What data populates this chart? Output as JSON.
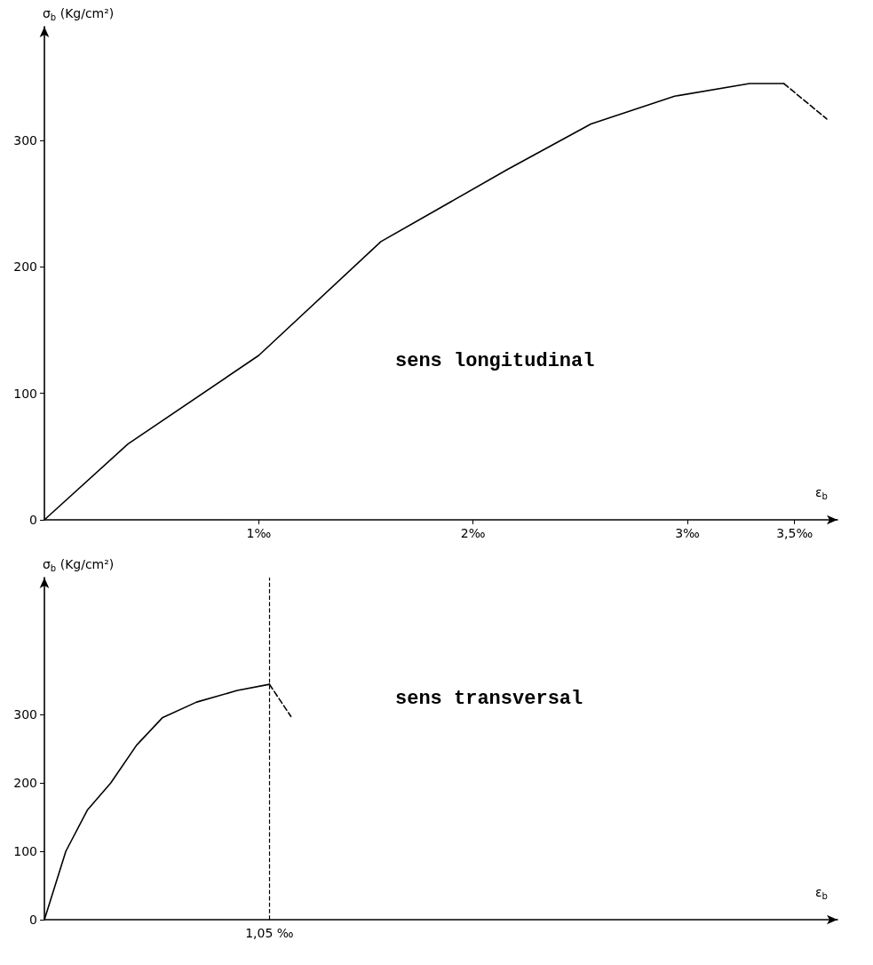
{
  "chart_data": [
    {
      "type": "line",
      "xlabel": "ε$_{b}$",
      "ylabel": "σ$_{b}$ (Kg/cm²)",
      "xlim": [
        0,
        3.7
      ],
      "ylim": [
        0,
        390
      ],
      "xticks": [
        {
          "value": 1,
          "label": "1‰"
        },
        {
          "value": 2,
          "label": "2‰"
        },
        {
          "value": 3,
          "label": "3‰"
        },
        {
          "value": 3.5,
          "label": "3,5‰"
        }
      ],
      "yticks": [
        0,
        100,
        200,
        300
      ],
      "grid": false,
      "marker": "none",
      "series": [
        {
          "color": "#000000",
          "line_style": "solid",
          "x": [
            0,
            0.39,
            1.0,
            1.57,
            2.16,
            2.55,
            2.94,
            3.29,
            3.45
          ],
          "values": [
            0,
            60,
            130,
            220,
            277,
            313,
            335,
            345,
            345
          ]
        },
        {
          "color": "#000000",
          "line_style": "dashed",
          "x": [
            3.45,
            3.65
          ],
          "values": [
            345,
            317
          ]
        }
      ],
      "annotations": [
        "sens longitudinal"
      ]
    },
    {
      "type": "line",
      "xlabel": "ε$_{b}$",
      "ylabel": "σ$_{b}$ (Kg/cm²)",
      "xlim": [
        0,
        3.7
      ],
      "ylim": [
        0,
        500
      ],
      "yticks": [
        0,
        100,
        200,
        300
      ],
      "grid": false,
      "marker": "none",
      "tick_labels": "y",
      "series": [
        {
          "color": "#000000",
          "line_style": "solid",
          "x": [
            0,
            0.1,
            0.2,
            0.31,
            0.43,
            0.55,
            0.71,
            0.9,
            1.05
          ],
          "values": [
            0,
            100,
            160,
            200,
            255,
            295,
            318,
            335,
            344
          ]
        },
        {
          "color": "#000000",
          "line_style": "dashed",
          "x": [
            1.05,
            1.15
          ],
          "values": [
            344,
            297
          ]
        }
      ],
      "ref_lines": [
        {
          "axis": "x",
          "value": 1.05,
          "label": "1,05 ‰",
          "color": "#000000",
          "line_style": "dashed"
        }
      ],
      "annotations": [
        "sens transversal"
      ]
    }
  ]
}
